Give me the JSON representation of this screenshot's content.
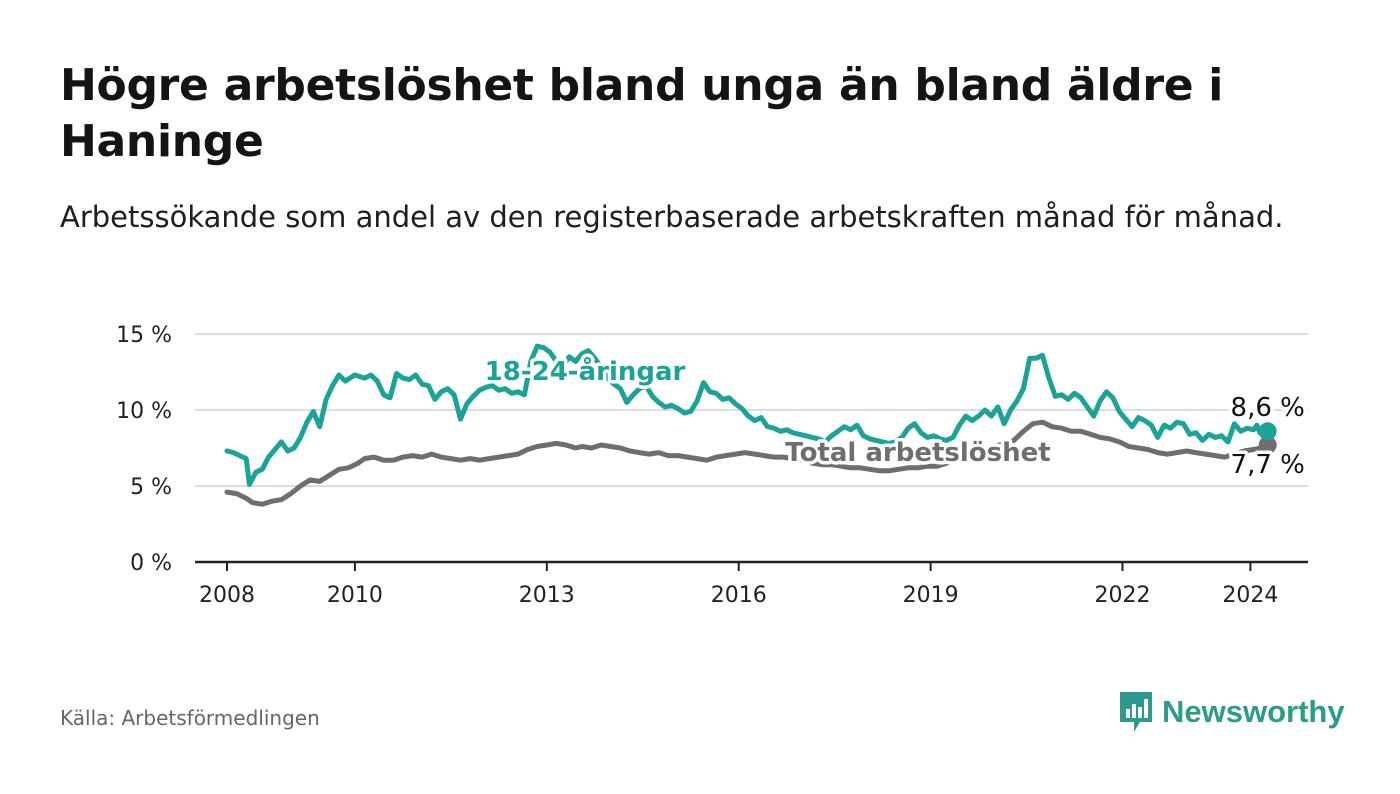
{
  "title": "Högre arbetslöshet bland unga än bland äldre i Haninge",
  "subtitle": "Arbetssökande som andel av den registerbaserade arbetskraften månad för månad.",
  "source": "Källa: Arbetsförmedlingen",
  "brand": "Newsworthy",
  "colors": {
    "youth": "#1aa396",
    "total": "#6e6e70",
    "grid": "#dddddd",
    "axis": "#222222"
  },
  "chart_data": {
    "type": "line",
    "title": "Högre arbetslöshet bland unga än bland äldre i Haninge",
    "xlabel": "",
    "ylabel": "",
    "x_ticks": [
      "2008",
      "2010",
      "2013",
      "2016",
      "2019",
      "2022",
      "2024"
    ],
    "y_ticks": [
      "0 %",
      "5 %",
      "10 %",
      "15 %"
    ],
    "ylim": [
      0,
      15
    ],
    "xlim": [
      2007.5,
      2024.9
    ],
    "series": [
      {
        "name": "18-24-åringar",
        "label": "18-24-åringar",
        "end_label": "8,6 %",
        "points": [
          [
            2008.0,
            7.3
          ],
          [
            2008.1,
            7.2
          ],
          [
            2008.2,
            7.0
          ],
          [
            2008.3,
            6.8
          ],
          [
            2008.35,
            5.1
          ],
          [
            2008.45,
            5.9
          ],
          [
            2008.55,
            6.1
          ],
          [
            2008.65,
            6.9
          ],
          [
            2008.75,
            7.4
          ],
          [
            2008.85,
            7.9
          ],
          [
            2008.95,
            7.3
          ],
          [
            2009.05,
            7.5
          ],
          [
            2009.15,
            8.2
          ],
          [
            2009.25,
            9.2
          ],
          [
            2009.35,
            9.9
          ],
          [
            2009.45,
            8.9
          ],
          [
            2009.55,
            10.7
          ],
          [
            2009.65,
            11.6
          ],
          [
            2009.75,
            12.3
          ],
          [
            2009.85,
            11.9
          ],
          [
            2010.0,
            12.3
          ],
          [
            2010.15,
            12.1
          ],
          [
            2010.25,
            12.3
          ],
          [
            2010.35,
            11.9
          ],
          [
            2010.45,
            11.0
          ],
          [
            2010.55,
            10.8
          ],
          [
            2010.65,
            12.4
          ],
          [
            2010.75,
            12.1
          ],
          [
            2010.85,
            12.0
          ],
          [
            2010.95,
            12.3
          ],
          [
            2011.05,
            11.7
          ],
          [
            2011.15,
            11.6
          ],
          [
            2011.25,
            10.7
          ],
          [
            2011.35,
            11.2
          ],
          [
            2011.45,
            11.4
          ],
          [
            2011.55,
            11.0
          ],
          [
            2011.65,
            9.4
          ],
          [
            2011.75,
            10.4
          ],
          [
            2011.85,
            10.9
          ],
          [
            2011.95,
            11.3
          ],
          [
            2012.05,
            11.5
          ],
          [
            2012.15,
            11.6
          ],
          [
            2012.25,
            11.3
          ],
          [
            2012.35,
            11.4
          ],
          [
            2012.45,
            11.1
          ],
          [
            2012.55,
            11.2
          ],
          [
            2012.65,
            11.0
          ],
          [
            2012.75,
            13.2
          ],
          [
            2012.85,
            14.2
          ],
          [
            2012.95,
            14.1
          ],
          [
            2013.05,
            13.8
          ],
          [
            2013.15,
            13.2
          ],
          [
            2013.25,
            12.9
          ],
          [
            2013.35,
            13.5
          ],
          [
            2013.45,
            13.2
          ],
          [
            2013.55,
            13.7
          ],
          [
            2013.65,
            13.9
          ],
          [
            2013.75,
            13.4
          ],
          [
            2013.85,
            12.8
          ],
          [
            2013.95,
            12.1
          ],
          [
            2014.05,
            11.7
          ],
          [
            2014.15,
            11.4
          ],
          [
            2014.25,
            10.5
          ],
          [
            2014.35,
            11.0
          ],
          [
            2014.45,
            11.4
          ],
          [
            2014.55,
            11.6
          ],
          [
            2014.65,
            10.9
          ],
          [
            2014.75,
            10.5
          ],
          [
            2014.85,
            10.2
          ],
          [
            2014.95,
            10.3
          ],
          [
            2015.05,
            10.1
          ],
          [
            2015.15,
            9.8
          ],
          [
            2015.25,
            9.9
          ],
          [
            2015.35,
            10.6
          ],
          [
            2015.45,
            11.8
          ],
          [
            2015.55,
            11.2
          ],
          [
            2015.65,
            11.1
          ],
          [
            2015.75,
            10.7
          ],
          [
            2015.85,
            10.8
          ],
          [
            2015.95,
            10.4
          ],
          [
            2016.05,
            10.1
          ],
          [
            2016.15,
            9.6
          ],
          [
            2016.25,
            9.3
          ],
          [
            2016.35,
            9.5
          ],
          [
            2016.45,
            8.9
          ],
          [
            2016.55,
            8.8
          ],
          [
            2016.65,
            8.6
          ],
          [
            2016.75,
            8.7
          ],
          [
            2016.85,
            8.5
          ],
          [
            2016.95,
            8.4
          ],
          [
            2017.05,
            8.3
          ],
          [
            2017.15,
            8.2
          ],
          [
            2017.25,
            8.1
          ],
          [
            2017.35,
            7.9
          ],
          [
            2017.45,
            8.3
          ],
          [
            2017.55,
            8.6
          ],
          [
            2017.65,
            8.9
          ],
          [
            2017.75,
            8.7
          ],
          [
            2017.85,
            9.0
          ],
          [
            2017.95,
            8.3
          ],
          [
            2018.05,
            8.1
          ],
          [
            2018.15,
            8.0
          ],
          [
            2018.25,
            7.9
          ],
          [
            2018.35,
            7.8
          ],
          [
            2018.45,
            7.9
          ],
          [
            2018.55,
            8.2
          ],
          [
            2018.65,
            8.8
          ],
          [
            2018.75,
            9.1
          ],
          [
            2018.85,
            8.5
          ],
          [
            2018.95,
            8.2
          ],
          [
            2019.05,
            8.3
          ],
          [
            2019.15,
            8.1
          ],
          [
            2019.25,
            8.0
          ],
          [
            2019.35,
            8.2
          ],
          [
            2019.45,
            9.0
          ],
          [
            2019.55,
            9.6
          ],
          [
            2019.65,
            9.3
          ],
          [
            2019.75,
            9.6
          ],
          [
            2019.85,
            10.0
          ],
          [
            2019.95,
            9.6
          ],
          [
            2020.05,
            10.2
          ],
          [
            2020.15,
            9.1
          ],
          [
            2020.25,
            10.0
          ],
          [
            2020.35,
            10.6
          ],
          [
            2020.45,
            11.4
          ],
          [
            2020.55,
            13.4
          ],
          [
            2020.65,
            13.4
          ],
          [
            2020.75,
            13.6
          ],
          [
            2020.85,
            12.1
          ],
          [
            2020.95,
            10.9
          ],
          [
            2021.05,
            11.0
          ],
          [
            2021.15,
            10.7
          ],
          [
            2021.25,
            11.1
          ],
          [
            2021.35,
            10.8
          ],
          [
            2021.45,
            10.2
          ],
          [
            2021.55,
            9.6
          ],
          [
            2021.65,
            10.6
          ],
          [
            2021.75,
            11.2
          ],
          [
            2021.85,
            10.8
          ],
          [
            2021.95,
            9.9
          ],
          [
            2022.05,
            9.4
          ],
          [
            2022.15,
            8.9
          ],
          [
            2022.25,
            9.5
          ],
          [
            2022.35,
            9.3
          ],
          [
            2022.45,
            9.0
          ],
          [
            2022.55,
            8.2
          ],
          [
            2022.65,
            9.0
          ],
          [
            2022.75,
            8.8
          ],
          [
            2022.85,
            9.2
          ],
          [
            2022.95,
            9.1
          ],
          [
            2023.05,
            8.4
          ],
          [
            2023.15,
            8.5
          ],
          [
            2023.25,
            8.0
          ],
          [
            2023.35,
            8.4
          ],
          [
            2023.45,
            8.2
          ],
          [
            2023.55,
            8.3
          ],
          [
            2023.65,
            7.9
          ],
          [
            2023.75,
            9.1
          ],
          [
            2023.85,
            8.6
          ],
          [
            2023.95,
            8.8
          ],
          [
            2024.05,
            8.7
          ],
          [
            2024.1,
            9.0
          ],
          [
            2024.15,
            8.5
          ],
          [
            2024.2,
            8.9
          ],
          [
            2024.27,
            8.6
          ]
        ]
      },
      {
        "name": "Total arbetslöshet",
        "label": "Total arbetslöshet",
        "end_label": "7,7 %",
        "points": [
          [
            2008.0,
            4.6
          ],
          [
            2008.15,
            4.5
          ],
          [
            2008.3,
            4.2
          ],
          [
            2008.4,
            3.9
          ],
          [
            2008.55,
            3.8
          ],
          [
            2008.7,
            4.0
          ],
          [
            2008.85,
            4.1
          ],
          [
            2009.0,
            4.5
          ],
          [
            2009.15,
            5.0
          ],
          [
            2009.3,
            5.4
          ],
          [
            2009.45,
            5.3
          ],
          [
            2009.6,
            5.7
          ],
          [
            2009.75,
            6.1
          ],
          [
            2009.9,
            6.2
          ],
          [
            2010.05,
            6.5
          ],
          [
            2010.15,
            6.8
          ],
          [
            2010.3,
            6.9
          ],
          [
            2010.45,
            6.7
          ],
          [
            2010.6,
            6.7
          ],
          [
            2010.75,
            6.9
          ],
          [
            2010.9,
            7.0
          ],
          [
            2011.05,
            6.9
          ],
          [
            2011.2,
            7.1
          ],
          [
            2011.35,
            6.9
          ],
          [
            2011.5,
            6.8
          ],
          [
            2011.65,
            6.7
          ],
          [
            2011.8,
            6.8
          ],
          [
            2011.95,
            6.7
          ],
          [
            2012.1,
            6.8
          ],
          [
            2012.25,
            6.9
          ],
          [
            2012.4,
            7.0
          ],
          [
            2012.55,
            7.1
          ],
          [
            2012.7,
            7.4
          ],
          [
            2012.85,
            7.6
          ],
          [
            2013.0,
            7.7
          ],
          [
            2013.15,
            7.8
          ],
          [
            2013.3,
            7.7
          ],
          [
            2013.45,
            7.5
          ],
          [
            2013.55,
            7.6
          ],
          [
            2013.7,
            7.5
          ],
          [
            2013.85,
            7.7
          ],
          [
            2014.0,
            7.6
          ],
          [
            2014.15,
            7.5
          ],
          [
            2014.3,
            7.3
          ],
          [
            2014.45,
            7.2
          ],
          [
            2014.6,
            7.1
          ],
          [
            2014.75,
            7.2
          ],
          [
            2014.9,
            7.0
          ],
          [
            2015.05,
            7.0
          ],
          [
            2015.2,
            6.9
          ],
          [
            2015.35,
            6.8
          ],
          [
            2015.5,
            6.7
          ],
          [
            2015.65,
            6.9
          ],
          [
            2015.8,
            7.0
          ],
          [
            2015.95,
            7.1
          ],
          [
            2016.1,
            7.2
          ],
          [
            2016.25,
            7.1
          ],
          [
            2016.4,
            7.0
          ],
          [
            2016.55,
            6.9
          ],
          [
            2016.7,
            6.9
          ],
          [
            2016.85,
            6.8
          ],
          [
            2017.0,
            6.7
          ],
          [
            2017.15,
            6.5
          ],
          [
            2017.3,
            6.4
          ],
          [
            2017.45,
            6.4
          ],
          [
            2017.6,
            6.3
          ],
          [
            2017.75,
            6.2
          ],
          [
            2017.9,
            6.2
          ],
          [
            2018.05,
            6.1
          ],
          [
            2018.2,
            6.0
          ],
          [
            2018.35,
            6.0
          ],
          [
            2018.5,
            6.1
          ],
          [
            2018.65,
            6.2
          ],
          [
            2018.8,
            6.2
          ],
          [
            2018.95,
            6.3
          ],
          [
            2019.1,
            6.3
          ],
          [
            2019.25,
            6.5
          ],
          [
            2019.4,
            6.7
          ],
          [
            2019.55,
            6.9
          ],
          [
            2019.7,
            7.1
          ],
          [
            2019.85,
            7.4
          ],
          [
            2020.0,
            7.6
          ],
          [
            2020.15,
            7.8
          ],
          [
            2020.3,
            8.0
          ],
          [
            2020.45,
            8.6
          ],
          [
            2020.6,
            9.1
          ],
          [
            2020.75,
            9.2
          ],
          [
            2020.9,
            8.9
          ],
          [
            2021.05,
            8.8
          ],
          [
            2021.2,
            8.6
          ],
          [
            2021.35,
            8.6
          ],
          [
            2021.5,
            8.4
          ],
          [
            2021.65,
            8.2
          ],
          [
            2021.8,
            8.1
          ],
          [
            2021.95,
            7.9
          ],
          [
            2022.1,
            7.6
          ],
          [
            2022.25,
            7.5
          ],
          [
            2022.4,
            7.4
          ],
          [
            2022.55,
            7.2
          ],
          [
            2022.7,
            7.1
          ],
          [
            2022.85,
            7.2
          ],
          [
            2023.0,
            7.3
          ],
          [
            2023.15,
            7.2
          ],
          [
            2023.3,
            7.1
          ],
          [
            2023.45,
            7.0
          ],
          [
            2023.6,
            6.9
          ],
          [
            2023.75,
            7.1
          ],
          [
            2023.9,
            7.3
          ],
          [
            2024.05,
            7.4
          ],
          [
            2024.15,
            7.5
          ],
          [
            2024.27,
            7.7
          ]
        ]
      }
    ]
  }
}
